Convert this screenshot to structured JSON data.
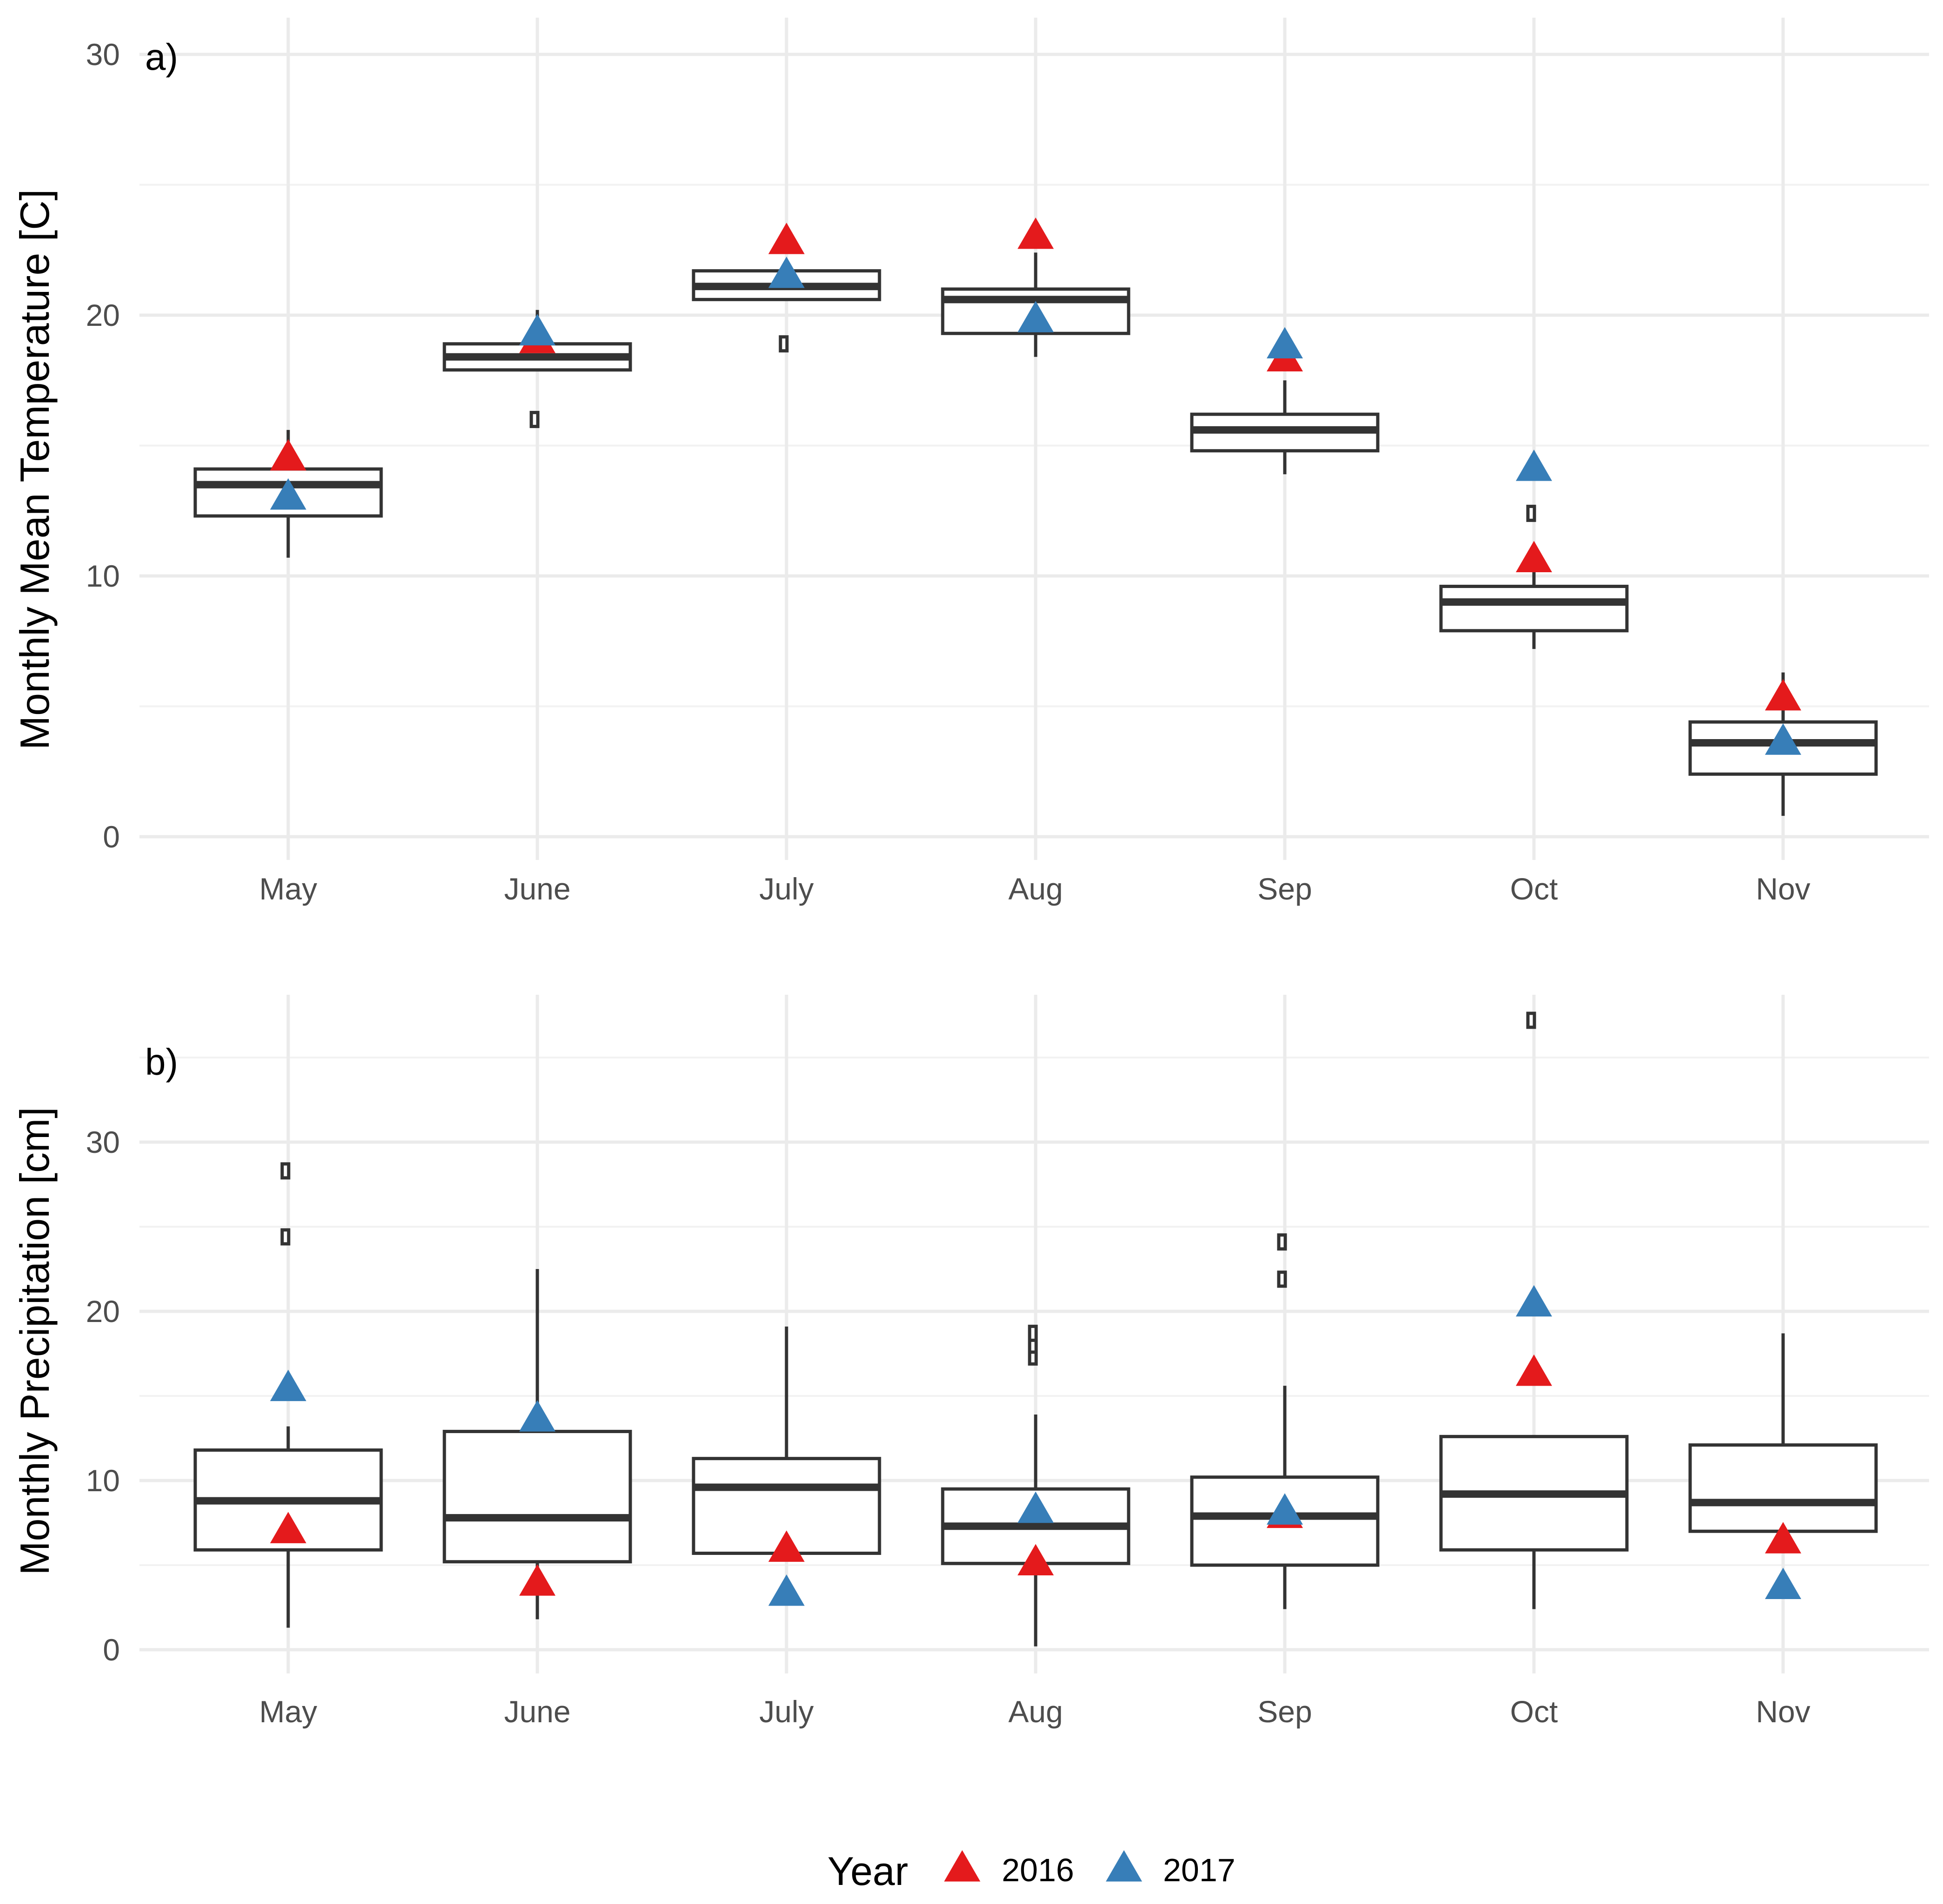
{
  "colors": {
    "year_2016": "#E41A1C",
    "year_2017": "#377EB8"
  },
  "legend": {
    "title": "Year",
    "entries": [
      {
        "label": "2016",
        "color": "#E41A1C"
      },
      {
        "label": "2017",
        "color": "#377EB8"
      }
    ]
  },
  "chart_data": [
    {
      "type": "box",
      "panel_label": "a)",
      "ylabel": "Monthly Mean Temperature [C]",
      "xlabel": "",
      "categories": [
        "May",
        "June",
        "July",
        "Aug",
        "Sep",
        "Oct",
        "Nov"
      ],
      "ylim": [
        0,
        30
      ],
      "yticks": [
        0,
        10,
        20,
        30
      ],
      "boxes": [
        {
          "category": "May",
          "whisker_low": 10.7,
          "q1": 12.3,
          "median": 13.5,
          "q3": 14.1,
          "whisker_high": 15.6,
          "outliers": []
        },
        {
          "category": "June",
          "whisker_low": 17.9,
          "q1": 17.9,
          "median": 18.4,
          "q3": 18.9,
          "whisker_high": 20.2,
          "outliers": [
            16.0
          ]
        },
        {
          "category": "July",
          "whisker_low": 20.6,
          "q1": 20.6,
          "median": 21.1,
          "q3": 21.7,
          "whisker_high": 21.7,
          "outliers": [
            18.9
          ]
        },
        {
          "category": "Aug",
          "whisker_low": 18.4,
          "q1": 19.3,
          "median": 20.6,
          "q3": 21.0,
          "whisker_high": 22.4,
          "outliers": []
        },
        {
          "category": "Sep",
          "whisker_low": 13.9,
          "q1": 14.8,
          "median": 15.6,
          "q3": 16.2,
          "whisker_high": 17.5,
          "outliers": []
        },
        {
          "category": "Oct",
          "whisker_low": 7.2,
          "q1": 7.9,
          "median": 9.0,
          "q3": 9.6,
          "whisker_high": 10.2,
          "outliers": [
            12.4
          ]
        },
        {
          "category": "Nov",
          "whisker_low": 0.8,
          "q1": 2.4,
          "median": 3.6,
          "q3": 4.4,
          "whisker_high": 6.3,
          "outliers": []
        }
      ],
      "series": [
        {
          "name": "2016",
          "values": [
            14.5,
            19.0,
            22.8,
            23.0,
            18.3,
            10.6,
            5.3
          ]
        },
        {
          "name": "2017",
          "values": [
            13.0,
            19.3,
            21.5,
            19.8,
            18.8,
            14.1,
            3.6
          ]
        }
      ]
    },
    {
      "type": "box",
      "panel_label": "b)",
      "ylabel": "Monthly Precipitation [cm]",
      "xlabel": "",
      "categories": [
        "May",
        "June",
        "July",
        "Aug",
        "Sep",
        "Oct",
        "Nov"
      ],
      "ylim": [
        0,
        38
      ],
      "yticks": [
        0,
        10,
        20,
        30
      ],
      "boxes": [
        {
          "category": "May",
          "whisker_low": 1.3,
          "q1": 5.9,
          "median": 8.8,
          "q3": 11.8,
          "whisker_high": 13.2,
          "outliers": [
            24.4,
            28.3
          ]
        },
        {
          "category": "June",
          "whisker_low": 1.8,
          "q1": 5.2,
          "median": 7.8,
          "q3": 12.9,
          "whisker_high": 22.5,
          "outliers": []
        },
        {
          "category": "July",
          "whisker_low": 5.7,
          "q1": 5.7,
          "median": 9.6,
          "q3": 11.3,
          "whisker_high": 19.1,
          "outliers": []
        },
        {
          "category": "Aug",
          "whisker_low": 0.2,
          "q1": 5.1,
          "median": 7.3,
          "q3": 9.5,
          "whisker_high": 13.9,
          "outliers": [
            17.3,
            18.0,
            18.7
          ]
        },
        {
          "category": "Sep",
          "whisker_low": 2.4,
          "q1": 5.0,
          "median": 7.9,
          "q3": 10.2,
          "whisker_high": 15.6,
          "outliers": [
            21.9,
            24.1
          ]
        },
        {
          "category": "Oct",
          "whisker_low": 2.4,
          "q1": 5.9,
          "median": 9.2,
          "q3": 12.6,
          "whisker_high": 12.6,
          "outliers": [
            37.2
          ]
        },
        {
          "category": "Nov",
          "whisker_low": 7.0,
          "q1": 7.0,
          "median": 8.7,
          "q3": 12.1,
          "whisker_high": 18.7,
          "outliers": []
        }
      ],
      "series": [
        {
          "name": "2016",
          "values": [
            7.0,
            3.9,
            5.9,
            5.1,
            7.9,
            16.3,
            6.4
          ]
        },
        {
          "name": "2017",
          "values": [
            15.4,
            13.6,
            3.3,
            8.2,
            8.1,
            20.4,
            3.7
          ]
        }
      ]
    }
  ]
}
